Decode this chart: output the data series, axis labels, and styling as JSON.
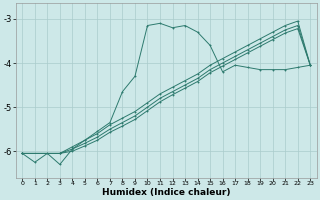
{
  "xlabel": "Humidex (Indice chaleur)",
  "background_color": "#cde8e8",
  "grid_color": "#aacccc",
  "line_color": "#2d7a6e",
  "xlim": [
    -0.5,
    23.5
  ],
  "ylim": [
    -6.6,
    -2.65
  ],
  "yticks": [
    -6,
    -5,
    -4,
    -3
  ],
  "xticks": [
    0,
    1,
    2,
    3,
    4,
    5,
    6,
    7,
    8,
    9,
    10,
    11,
    12,
    13,
    14,
    15,
    16,
    17,
    18,
    19,
    20,
    21,
    22,
    23
  ],
  "series": [
    {
      "x": [
        0,
        1,
        2,
        3,
        4,
        5,
        6,
        7,
        8,
        9,
        10,
        11,
        12,
        13,
        14,
        15,
        16,
        17,
        18,
        19,
        20,
        21,
        22,
        23
      ],
      "y": [
        -6.05,
        -6.25,
        -6.05,
        -6.3,
        -5.95,
        -5.75,
        -5.55,
        -5.35,
        -4.65,
        -4.3,
        -3.15,
        -3.1,
        -3.2,
        -3.15,
        -3.3,
        -3.6,
        -4.2,
        -4.05,
        -4.1,
        -4.15,
        -4.15,
        -4.15,
        -4.1,
        -4.05
      ]
    },
    {
      "x": [
        0,
        3,
        4,
        5,
        6,
        7,
        8,
        9,
        10,
        11,
        12,
        13,
        14,
        15,
        16,
        17,
        18,
        19,
        20,
        21,
        22,
        23
      ],
      "y": [
        -6.05,
        -6.05,
        -5.9,
        -5.75,
        -5.6,
        -5.4,
        -5.25,
        -5.1,
        -4.9,
        -4.7,
        -4.55,
        -4.4,
        -4.25,
        -4.05,
        -3.9,
        -3.75,
        -3.6,
        -3.45,
        -3.3,
        -3.15,
        -3.05,
        -4.05
      ]
    },
    {
      "x": [
        0,
        3,
        4,
        5,
        6,
        7,
        8,
        9,
        10,
        11,
        12,
        13,
        14,
        15,
        16,
        17,
        18,
        19,
        20,
        21,
        22,
        23
      ],
      "y": [
        -6.05,
        -6.05,
        -5.95,
        -5.82,
        -5.68,
        -5.5,
        -5.35,
        -5.2,
        -5.0,
        -4.8,
        -4.65,
        -4.5,
        -4.35,
        -4.15,
        -4.0,
        -3.85,
        -3.7,
        -3.55,
        -3.4,
        -3.25,
        -3.15,
        -4.05
      ]
    },
    {
      "x": [
        0,
        3,
        4,
        5,
        6,
        7,
        8,
        9,
        10,
        11,
        12,
        13,
        14,
        15,
        16,
        17,
        18,
        19,
        20,
        21,
        22,
        23
      ],
      "y": [
        -6.05,
        -6.05,
        -6.0,
        -5.88,
        -5.75,
        -5.57,
        -5.43,
        -5.28,
        -5.08,
        -4.88,
        -4.72,
        -4.57,
        -4.42,
        -4.22,
        -4.07,
        -3.92,
        -3.77,
        -3.62,
        -3.47,
        -3.32,
        -3.22,
        -4.05
      ]
    }
  ]
}
